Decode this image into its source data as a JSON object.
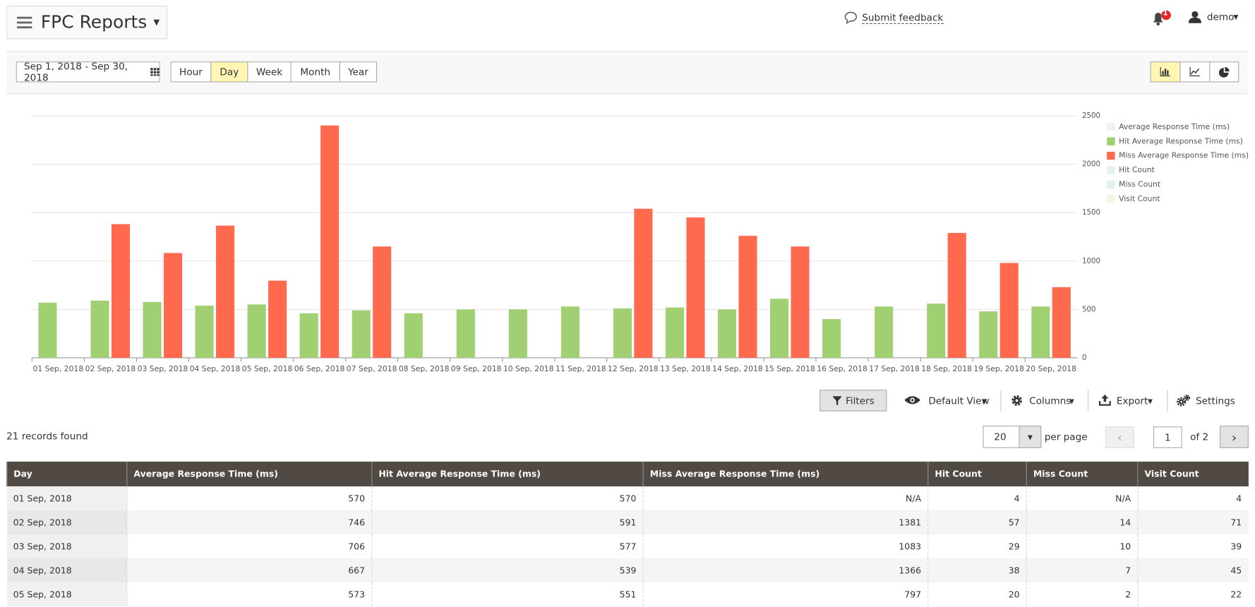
{
  "header": {
    "title": "FPC Reports",
    "feedback": "Submit feedback",
    "notifications": "1",
    "user": "demo"
  },
  "toolbar": {
    "date_range": "Sep 1, 2018 - Sep 30, 2018",
    "periods": [
      "Hour",
      "Day",
      "Week",
      "Month",
      "Year"
    ],
    "active_period": "Day"
  },
  "chart_data": {
    "type": "bar",
    "categories": [
      "01 Sep, 2018",
      "02 Sep, 2018",
      "03 Sep, 2018",
      "04 Sep, 2018",
      "05 Sep, 2018",
      "06 Sep, 2018",
      "07 Sep, 2018",
      "08 Sep, 2018",
      "09 Sep, 2018",
      "10 Sep, 2018",
      "11 Sep, 2018",
      "12 Sep, 2018",
      "13 Sep, 2018",
      "14 Sep, 2018",
      "15 Sep, 2018",
      "16 Sep, 2018",
      "17 Sep, 2018",
      "18 Sep, 2018",
      "19 Sep, 2018",
      "20 Sep, 2018"
    ],
    "series": [
      {
        "name": "Average Response Time (ms)",
        "color": "#eef1f2",
        "visible": false
      },
      {
        "name": "Hit Average Response Time (ms)",
        "color": "#a1d072",
        "visible": true,
        "values": [
          570,
          591,
          577,
          539,
          551,
          460,
          490,
          460,
          500,
          500,
          530,
          510,
          520,
          500,
          610,
          400,
          530,
          560,
          480,
          530
        ]
      },
      {
        "name": "Miss Average Response Time (ms)",
        "color": "#ff6a4f",
        "visible": true,
        "values": [
          null,
          1381,
          1083,
          1366,
          797,
          2400,
          1150,
          null,
          null,
          null,
          null,
          1540,
          1450,
          1260,
          1150,
          null,
          null,
          1290,
          980,
          730
        ]
      },
      {
        "name": "Hit Count",
        "color": "#e2f4e8",
        "visible": false
      },
      {
        "name": "Miss Count",
        "color": "#e3eef0",
        "visible": false
      },
      {
        "name": "Visit Count",
        "color": "#f1f5e6",
        "visible": false
      }
    ],
    "ylim": [
      0,
      2500
    ],
    "yticks": [
      0,
      500,
      1000,
      1500,
      2000,
      2500
    ],
    "grid": true,
    "y_axis_side": "right",
    "legend": "top-right"
  },
  "grid_toolbar": {
    "filters": "Filters",
    "view": "Default View",
    "columns": "Columns",
    "export": "Export",
    "settings": "Settings"
  },
  "records": "21 records found",
  "pagination": {
    "per_page": "20",
    "per_page_label": "per page",
    "page": "1",
    "of": "of 2"
  },
  "table": {
    "columns": [
      "Day",
      "Average Response Time (ms)",
      "Hit Average Response Time (ms)",
      "Miss Average Response Time (ms)",
      "Hit Count",
      "Miss Count",
      "Visit Count"
    ],
    "rows": [
      [
        "01 Sep, 2018",
        570,
        570,
        "N/A",
        4,
        "N/A",
        4
      ],
      [
        "02 Sep, 2018",
        746,
        591,
        1381,
        57,
        14,
        71
      ],
      [
        "03 Sep, 2018",
        706,
        577,
        1083,
        29,
        10,
        39
      ],
      [
        "04 Sep, 2018",
        667,
        539,
        1366,
        38,
        7,
        45
      ],
      [
        "05 Sep, 2018",
        573,
        551,
        797,
        20,
        2,
        22
      ]
    ]
  }
}
